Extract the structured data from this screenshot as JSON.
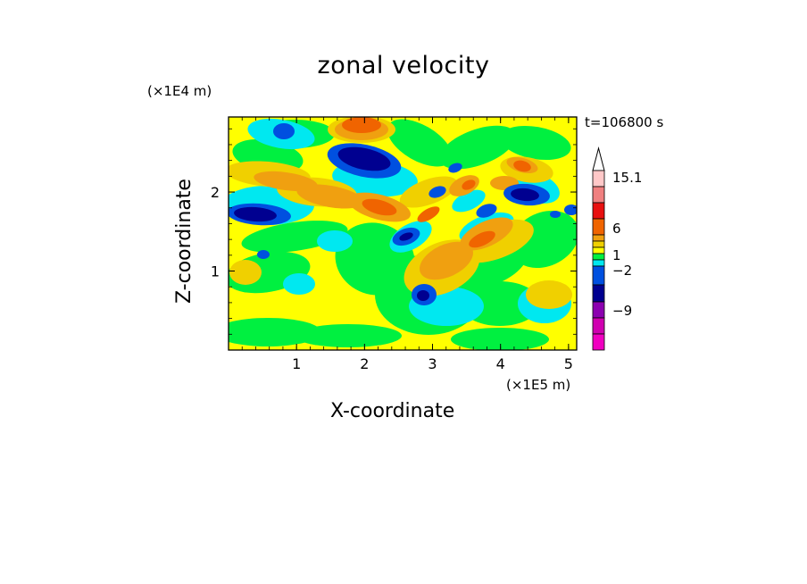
{
  "title": "zonal velocity",
  "timestamp": "t=106800 s",
  "chart_data": {
    "type": "heatmap",
    "title": "zonal velocity",
    "xlabel": "X-coordinate",
    "ylabel": "Z-coordinate",
    "x_unit": "(×1E5 m)",
    "y_unit": "(×1E4 m)",
    "xlim": [
      0,
      5.12
    ],
    "ylim": [
      0,
      2.95
    ],
    "x_ticks": [
      "1",
      "2",
      "3",
      "4",
      "5"
    ],
    "y_ticks": [
      "1",
      "2"
    ],
    "colorbar": {
      "labels": [
        "15.1",
        "6",
        "1",
        "−2",
        "−9"
      ],
      "colors_top_to_bottom": [
        "#ffc8c8",
        "#f08080",
        "#e81010",
        "#f06400",
        "#f0a010",
        "#f0d000",
        "#ffff00",
        "#00f040",
        "#00e8f0",
        "#0050e0",
        "#000090",
        "#8c00b0",
        "#d000b0",
        "#f000c0"
      ]
    },
    "palette": {
      "magenta": "#f000c0",
      "purple": "#a000b0",
      "navy": "#000090",
      "blue": "#0050e0",
      "cyan": "#00e8f0",
      "green": "#00f040",
      "yellow": "#ffff00",
      "yellow_orange": "#f0d000",
      "light_orange": "#f0a010",
      "orange": "#f06400",
      "red": "#e81010",
      "light_red": "#f08080",
      "pink": "#ffc8c8"
    }
  }
}
